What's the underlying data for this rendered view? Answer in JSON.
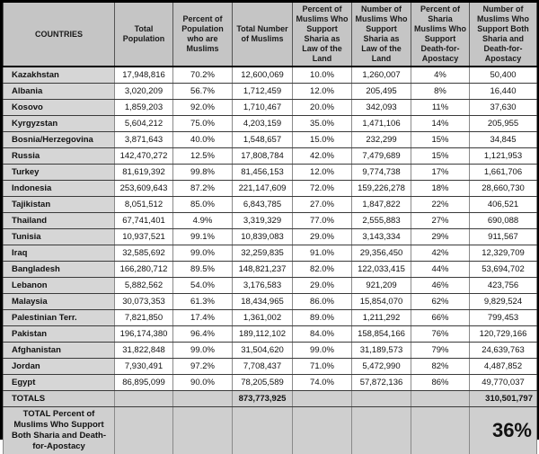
{
  "colors": {
    "header_bg": "#c5c5c5",
    "country_col_bg": "#d6d6d6",
    "data_cell_bg": "#ffffff",
    "summary_bg": "#cfcfcf",
    "border": "#000000",
    "text": "#111111"
  },
  "table": {
    "columns": [
      "COUNTRIES",
      "Total Population",
      "Percent of Population who are Muslims",
      "Total Number of Muslims",
      "Percent of Muslims Who Support Sharia as Law of the Land",
      "Number of Muslims Who Support Sharia as Law of the Land",
      "Percent of Sharia Muslims Who Support Death-for-Apostacy",
      "Number of Muslims Who Support Both Sharia and Death-for-Apostacy"
    ],
    "rows": [
      {
        "country": "Kazakhstan",
        "values": [
          "17,948,816",
          "70.2%",
          "12,600,069",
          "10.0%",
          "1,260,007",
          "4%",
          "50,400"
        ]
      },
      {
        "country": "Albania",
        "values": [
          "3,020,209",
          "56.7%",
          "1,712,459",
          "12.0%",
          "205,495",
          "8%",
          "16,440"
        ]
      },
      {
        "country": "Kosovo",
        "values": [
          "1,859,203",
          "92.0%",
          "1,710,467",
          "20.0%",
          "342,093",
          "11%",
          "37,630"
        ]
      },
      {
        "country": "Kyrgyzstan",
        "values": [
          "5,604,212",
          "75.0%",
          "4,203,159",
          "35.0%",
          "1,471,106",
          "14%",
          "205,955"
        ]
      },
      {
        "country": "Bosnia/Herzegovina",
        "values": [
          "3,871,643",
          "40.0%",
          "1,548,657",
          "15.0%",
          "232,299",
          "15%",
          "34,845"
        ]
      },
      {
        "country": "Russia",
        "values": [
          "142,470,272",
          "12.5%",
          "17,808,784",
          "42.0%",
          "7,479,689",
          "15%",
          "1,121,953"
        ]
      },
      {
        "country": "Turkey",
        "values": [
          "81,619,392",
          "99.8%",
          "81,456,153",
          "12.0%",
          "9,774,738",
          "17%",
          "1,661,706"
        ]
      },
      {
        "country": "Indonesia",
        "values": [
          "253,609,643",
          "87.2%",
          "221,147,609",
          "72.0%",
          "159,226,278",
          "18%",
          "28,660,730"
        ]
      },
      {
        "country": "Tajikistan",
        "values": [
          "8,051,512",
          "85.0%",
          "6,843,785",
          "27.0%",
          "1,847,822",
          "22%",
          "406,521"
        ]
      },
      {
        "country": "Thailand",
        "values": [
          "67,741,401",
          "4.9%",
          "3,319,329",
          "77.0%",
          "2,555,883",
          "27%",
          "690,088"
        ]
      },
      {
        "country": "Tunisia",
        "values": [
          "10,937,521",
          "99.1%",
          "10,839,083",
          "29.0%",
          "3,143,334",
          "29%",
          "911,567"
        ]
      },
      {
        "country": "Iraq",
        "values": [
          "32,585,692",
          "99.0%",
          "32,259,835",
          "91.0%",
          "29,356,450",
          "42%",
          "12,329,709"
        ]
      },
      {
        "country": "Bangladesh",
        "values": [
          "166,280,712",
          "89.5%",
          "148,821,237",
          "82.0%",
          "122,033,415",
          "44%",
          "53,694,702"
        ]
      },
      {
        "country": "Lebanon",
        "values": [
          "5,882,562",
          "54.0%",
          "3,176,583",
          "29.0%",
          "921,209",
          "46%",
          "423,756"
        ]
      },
      {
        "country": "Malaysia",
        "values": [
          "30,073,353",
          "61.3%",
          "18,434,965",
          "86.0%",
          "15,854,070",
          "62%",
          "9,829,524"
        ]
      },
      {
        "country": "Palestinian Terr.",
        "values": [
          "7,821,850",
          "17.4%",
          "1,361,002",
          "89.0%",
          "1,211,292",
          "66%",
          "799,453"
        ]
      },
      {
        "country": "Pakistan",
        "values": [
          "196,174,380",
          "96.4%",
          "189,112,102",
          "84.0%",
          "158,854,166",
          "76%",
          "120,729,166"
        ]
      },
      {
        "country": "Afghanistan",
        "values": [
          "31,822,848",
          "99.0%",
          "31,504,620",
          "99.0%",
          "31,189,573",
          "79%",
          "24,639,763"
        ]
      },
      {
        "country": "Jordan",
        "values": [
          "7,930,491",
          "97.2%",
          "7,708,437",
          "71.0%",
          "5,472,990",
          "82%",
          "4,487,852"
        ]
      },
      {
        "country": "Egypt",
        "values": [
          "86,895,099",
          "90.0%",
          "78,205,589",
          "74.0%",
          "57,872,136",
          "86%",
          "49,770,037"
        ]
      }
    ],
    "totals": {
      "label": "TOTALS",
      "total_muslims": "873,773,925",
      "total_both": "310,501,797"
    },
    "footer": {
      "label": "TOTAL Percent of Muslims Who Support Both Sharia and Death-for-Apostacy",
      "value": "36%"
    }
  },
  "chart_data": {
    "type": "table",
    "title": "Muslim populations and support for Sharia and death-for-apostacy by country",
    "columns": [
      "COUNTRIES",
      "Total Population",
      "Percent of Population who are Muslims",
      "Total Number of Muslims",
      "Percent of Muslims Who Support Sharia as Law of the Land",
      "Number of Muslims Who Support Sharia as Law of the Land",
      "Percent of Sharia Muslims Who Support Death-for-Apostacy",
      "Number of Muslims Who Support Both Sharia and Death-for-Apostacy"
    ],
    "rows": [
      [
        "Kazakhstan",
        17948816,
        70.2,
        12600069,
        10.0,
        1260007,
        4,
        50400
      ],
      [
        "Albania",
        3020209,
        56.7,
        1712459,
        12.0,
        205495,
        8,
        16440
      ],
      [
        "Kosovo",
        1859203,
        92.0,
        1710467,
        20.0,
        342093,
        11,
        37630
      ],
      [
        "Kyrgyzstan",
        5604212,
        75.0,
        4203159,
        35.0,
        1471106,
        14,
        205955
      ],
      [
        "Bosnia/Herzegovina",
        3871643,
        40.0,
        1548657,
        15.0,
        232299,
        15,
        34845
      ],
      [
        "Russia",
        142470272,
        12.5,
        17808784,
        42.0,
        7479689,
        15,
        1121953
      ],
      [
        "Turkey",
        81619392,
        99.8,
        81456153,
        12.0,
        9774738,
        17,
        1661706
      ],
      [
        "Indonesia",
        253609643,
        87.2,
        221147609,
        72.0,
        159226278,
        18,
        28660730
      ],
      [
        "Tajikistan",
        8051512,
        85.0,
        6843785,
        27.0,
        1847822,
        22,
        406521
      ],
      [
        "Thailand",
        67741401,
        4.9,
        3319329,
        77.0,
        2555883,
        27,
        690088
      ],
      [
        "Tunisia",
        10937521,
        99.1,
        10839083,
        29.0,
        3143334,
        29,
        911567
      ],
      [
        "Iraq",
        32585692,
        99.0,
        32259835,
        91.0,
        29356450,
        42,
        12329709
      ],
      [
        "Bangladesh",
        166280712,
        89.5,
        148821237,
        82.0,
        122033415,
        44,
        53694702
      ],
      [
        "Lebanon",
        5882562,
        54.0,
        3176583,
        29.0,
        921209,
        46,
        423756
      ],
      [
        "Malaysia",
        30073353,
        61.3,
        18434965,
        86.0,
        15854070,
        62,
        9829524
      ],
      [
        "Palestinian Terr.",
        7821850,
        17.4,
        1361002,
        89.0,
        1211292,
        66,
        799453
      ],
      [
        "Pakistan",
        196174380,
        96.4,
        189112102,
        84.0,
        158854166,
        76,
        120729166
      ],
      [
        "Afghanistan",
        31822848,
        99.0,
        31504620,
        99.0,
        31189573,
        79,
        24639763
      ],
      [
        "Jordan",
        7930491,
        97.2,
        7708437,
        71.0,
        5472990,
        82,
        4487852
      ],
      [
        "Egypt",
        86895099,
        90.0,
        78205589,
        74.0,
        57872136,
        86,
        49770037
      ]
    ],
    "totals": {
      "total_number_of_muslims": 873773925,
      "muslims_supporting_both": 310501797
    },
    "total_percent_supporting_both": 36
  }
}
